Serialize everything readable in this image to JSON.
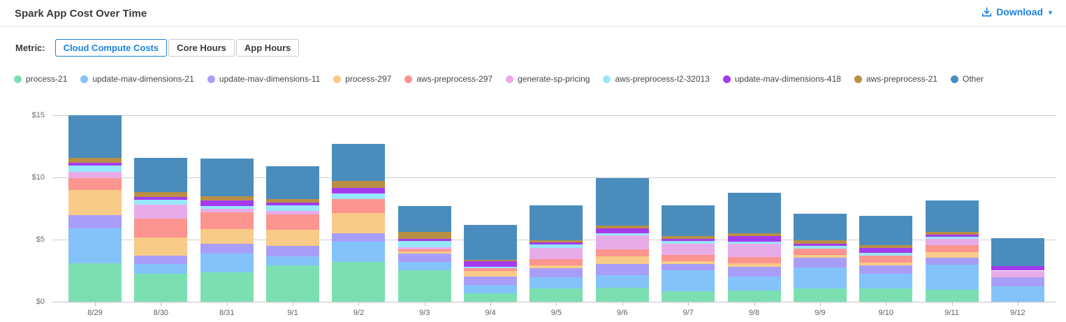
{
  "header": {
    "title": "Spark App Cost Over Time",
    "download_label": "Download",
    "caret": "▼"
  },
  "metric": {
    "label": "Metric:",
    "options": [
      {
        "label": "Cloud Compute Costs",
        "selected": true
      },
      {
        "label": "Core Hours",
        "selected": false
      },
      {
        "label": "App Hours",
        "selected": false
      }
    ]
  },
  "colors": {
    "accent_blue": "#1a82e2",
    "grid": "#cfcfcf",
    "axis_text": "#6e6e6e"
  },
  "chart_data": {
    "type": "bar",
    "stacked": true,
    "grid": true,
    "legend_position": "top",
    "ylabel_prefix": "$",
    "ylim": [
      0,
      15
    ],
    "yticks": [
      0,
      5,
      10,
      15
    ],
    "categories": [
      "8/29",
      "8/30",
      "8/31",
      "9/1",
      "9/2",
      "9/3",
      "9/4",
      "9/5",
      "9/6",
      "9/7",
      "9/8",
      "9/9",
      "9/10",
      "9/11",
      "9/12"
    ],
    "series": [
      {
        "name": "process-21",
        "color": "#7cdfb2",
        "values": [
          3.1,
          2.22,
          2.35,
          2.91,
          3.2,
          2.54,
          0.66,
          1.07,
          1.13,
          0.85,
          0.89,
          1.07,
          1.07,
          0.94,
          0.0
        ]
      },
      {
        "name": "update-mav-dimensions-21",
        "color": "#84c3f9",
        "values": [
          2.82,
          0.84,
          1.5,
          0.72,
          1.65,
          0.66,
          0.69,
          0.9,
          1.03,
          1.69,
          1.12,
          1.66,
          1.18,
          2.01,
          1.22
        ]
      },
      {
        "name": "update-mav-dimensions-11",
        "color": "#a89efa",
        "values": [
          1.03,
          0.64,
          0.81,
          0.84,
          0.66,
          0.66,
          0.68,
          0.7,
          0.9,
          0.5,
          0.81,
          0.79,
          0.66,
          0.6,
          0.75
        ]
      },
      {
        "name": "process-297",
        "color": "#f8cb88",
        "values": [
          2.03,
          1.47,
          1.2,
          1.32,
          1.63,
          0.19,
          0.42,
          0.24,
          0.61,
          0.21,
          0.28,
          0.25,
          0.25,
          0.42,
          0.0
        ]
      },
      {
        "name": "aws-preprocess-297",
        "color": "#fc948f",
        "values": [
          0.98,
          1.51,
          1.34,
          1.22,
          1.13,
          0.15,
          0.26,
          0.53,
          0.52,
          0.51,
          0.51,
          0.51,
          0.56,
          0.56,
          0.0
        ]
      },
      {
        "name": "generate-sp-pricing",
        "color": "#e7ace8",
        "values": [
          0.51,
          1.12,
          0.26,
          0.32,
          0.0,
          0.17,
          0.0,
          0.88,
          1.13,
          0.9,
          1.04,
          0.0,
          0.0,
          0.53,
          0.53
        ]
      },
      {
        "name": "aws-preprocess-l2-32013",
        "color": "#97e7fa",
        "values": [
          0.49,
          0.41,
          0.21,
          0.41,
          0.45,
          0.52,
          0.11,
          0.28,
          0.19,
          0.23,
          0.19,
          0.24,
          0.19,
          0.15,
          0.0
        ]
      },
      {
        "name": "update-mav-dimensions-418",
        "color": "#a43bef",
        "values": [
          0.22,
          0.19,
          0.45,
          0.21,
          0.45,
          0.19,
          0.42,
          0.16,
          0.37,
          0.15,
          0.43,
          0.15,
          0.41,
          0.17,
          0.37
        ]
      },
      {
        "name": "aws-preprocess-21",
        "color": "#b98f45",
        "values": [
          0.42,
          0.44,
          0.38,
          0.32,
          0.56,
          0.53,
          0.15,
          0.18,
          0.23,
          0.22,
          0.23,
          0.26,
          0.23,
          0.24,
          0.0
        ]
      },
      {
        "name": "Other",
        "color": "#4a8dbd",
        "values": [
          3.4,
          2.76,
          3.02,
          2.63,
          2.99,
          2.1,
          2.77,
          2.82,
          3.81,
          2.5,
          3.29,
          2.13,
          2.35,
          2.55,
          2.25
        ]
      }
    ]
  }
}
